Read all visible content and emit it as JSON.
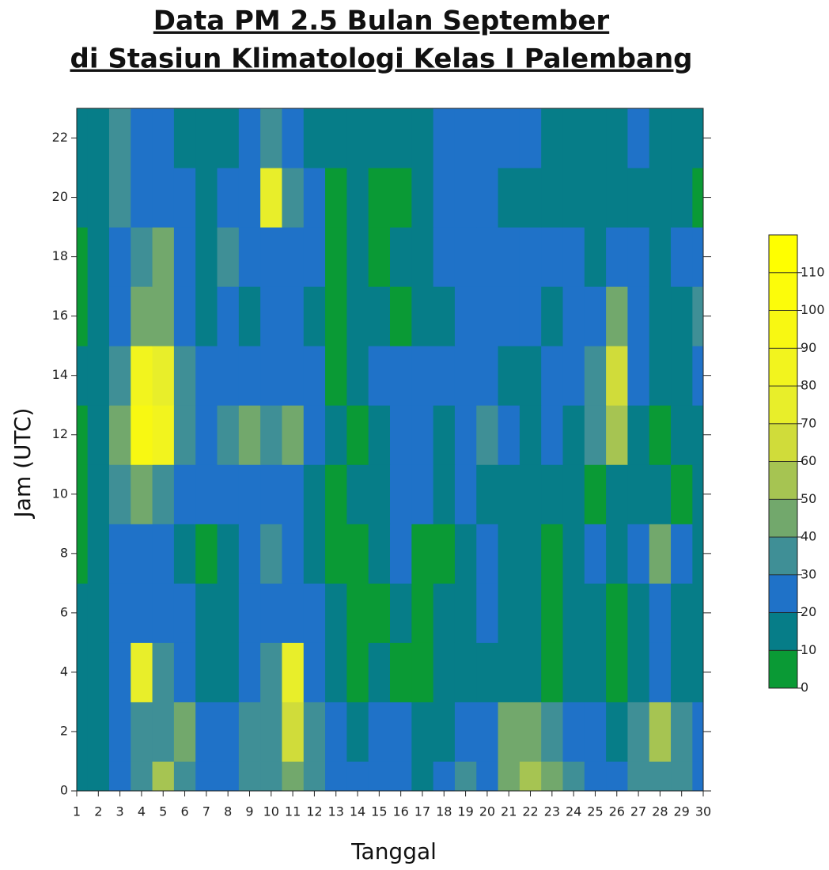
{
  "chart_data": {
    "type": "heatmap",
    "title": [
      "Data PM 2.5 Bulan September",
      "di Stasiun Klimatologi Kelas I Palembang"
    ],
    "x_label": "Tanggal",
    "y_label": "Jam (UTC)",
    "x": [
      1,
      2,
      3,
      4,
      5,
      6,
      7,
      8,
      9,
      10,
      11,
      12,
      13,
      14,
      15,
      16,
      17,
      18,
      19,
      20,
      21,
      22,
      23,
      24,
      25,
      26,
      27,
      28,
      29,
      30
    ],
    "y": [
      0,
      2,
      4,
      6,
      8,
      10,
      12,
      14,
      16,
      18,
      20,
      22
    ],
    "z": [
      [
        15,
        15,
        25,
        35,
        55,
        35,
        25,
        25,
        30,
        35,
        45,
        30,
        25,
        25,
        25,
        25,
        15,
        25,
        35,
        25,
        45,
        55,
        45,
        35,
        25,
        25,
        35,
        35,
        35,
        25
      ],
      [
        15,
        15,
        25,
        35,
        35,
        45,
        25,
        25,
        35,
        35,
        65,
        35,
        25,
        15,
        25,
        25,
        15,
        15,
        25,
        25,
        45,
        45,
        35,
        25,
        25,
        15,
        35,
        55,
        35,
        25
      ],
      [
        15,
        15,
        25,
        75,
        35,
        25,
        15,
        15,
        25,
        35,
        75,
        25,
        15,
        5,
        15,
        5,
        5,
        15,
        15,
        15,
        15,
        15,
        5,
        15,
        15,
        5,
        15,
        25,
        15,
        15
      ],
      [
        15,
        15,
        25,
        25,
        25,
        25,
        15,
        15,
        25,
        25,
        25,
        25,
        15,
        5,
        5,
        15,
        5,
        15,
        15,
        25,
        15,
        15,
        5,
        15,
        15,
        5,
        15,
        25,
        15,
        15
      ],
      [
        5,
        15,
        25,
        25,
        25,
        15,
        5,
        15,
        25,
        35,
        25,
        15,
        5,
        5,
        15,
        25,
        5,
        5,
        15,
        25,
        15,
        15,
        5,
        15,
        25,
        15,
        25,
        45,
        25,
        15
      ],
      [
        5,
        15,
        35,
        45,
        35,
        25,
        25,
        25,
        25,
        25,
        25,
        15,
        5,
        15,
        15,
        25,
        25,
        15,
        25,
        15,
        15,
        15,
        15,
        15,
        5,
        15,
        15,
        15,
        5,
        15
      ],
      [
        5,
        15,
        45,
        95,
        85,
        35,
        25,
        35,
        45,
        35,
        45,
        25,
        15,
        5,
        15,
        25,
        25,
        15,
        25,
        35,
        25,
        15,
        25,
        15,
        35,
        55,
        15,
        5,
        15,
        15
      ],
      [
        15,
        15,
        35,
        85,
        75,
        35,
        25,
        25,
        25,
        25,
        25,
        25,
        5,
        15,
        25,
        25,
        25,
        25,
        25,
        25,
        15,
        15,
        25,
        25,
        35,
        65,
        25,
        15,
        15,
        25
      ],
      [
        5,
        15,
        25,
        45,
        45,
        25,
        15,
        25,
        15,
        25,
        25,
        15,
        5,
        15,
        15,
        5,
        15,
        15,
        25,
        25,
        25,
        25,
        15,
        25,
        25,
        45,
        25,
        15,
        15,
        35
      ],
      [
        5,
        15,
        25,
        35,
        45,
        25,
        15,
        35,
        25,
        25,
        25,
        25,
        5,
        15,
        5,
        15,
        15,
        25,
        25,
        25,
        25,
        25,
        25,
        25,
        15,
        25,
        25,
        15,
        25,
        25
      ],
      [
        15,
        15,
        35,
        25,
        25,
        25,
        15,
        25,
        25,
        75,
        35,
        25,
        5,
        15,
        5,
        5,
        15,
        25,
        25,
        25,
        15,
        15,
        15,
        15,
        15,
        15,
        15,
        15,
        15,
        5
      ],
      [
        15,
        15,
        35,
        25,
        25,
        15,
        15,
        15,
        25,
        35,
        25,
        15,
        15,
        15,
        15,
        15,
        15,
        25,
        25,
        25,
        25,
        25,
        15,
        15,
        15,
        15,
        25,
        15,
        15,
        15
      ]
    ],
    "xlim": [
      1,
      30
    ],
    "ylim": [
      0,
      23
    ],
    "xticks": [
      1,
      2,
      3,
      4,
      5,
      6,
      7,
      8,
      9,
      10,
      11,
      12,
      13,
      14,
      15,
      16,
      17,
      18,
      19,
      20,
      21,
      22,
      23,
      24,
      25,
      26,
      27,
      28,
      29,
      30
    ],
    "yticks": [
      0,
      2,
      4,
      6,
      8,
      10,
      12,
      14,
      16,
      18,
      20,
      22
    ],
    "levels": [
      0,
      10,
      20,
      30,
      40,
      50,
      60,
      70,
      80,
      90,
      100,
      110
    ],
    "colors": [
      "#0a9a35",
      "#067d88",
      "#1f72c8",
      "#3f8f96",
      "#72a86c",
      "#a6c452",
      "#d0dc3a",
      "#e8ee2a",
      "#f2f41e",
      "#f8f812",
      "#fcfc0a",
      "#ffff00"
    ],
    "colorbar_lim": [
      0,
      120
    ]
  }
}
